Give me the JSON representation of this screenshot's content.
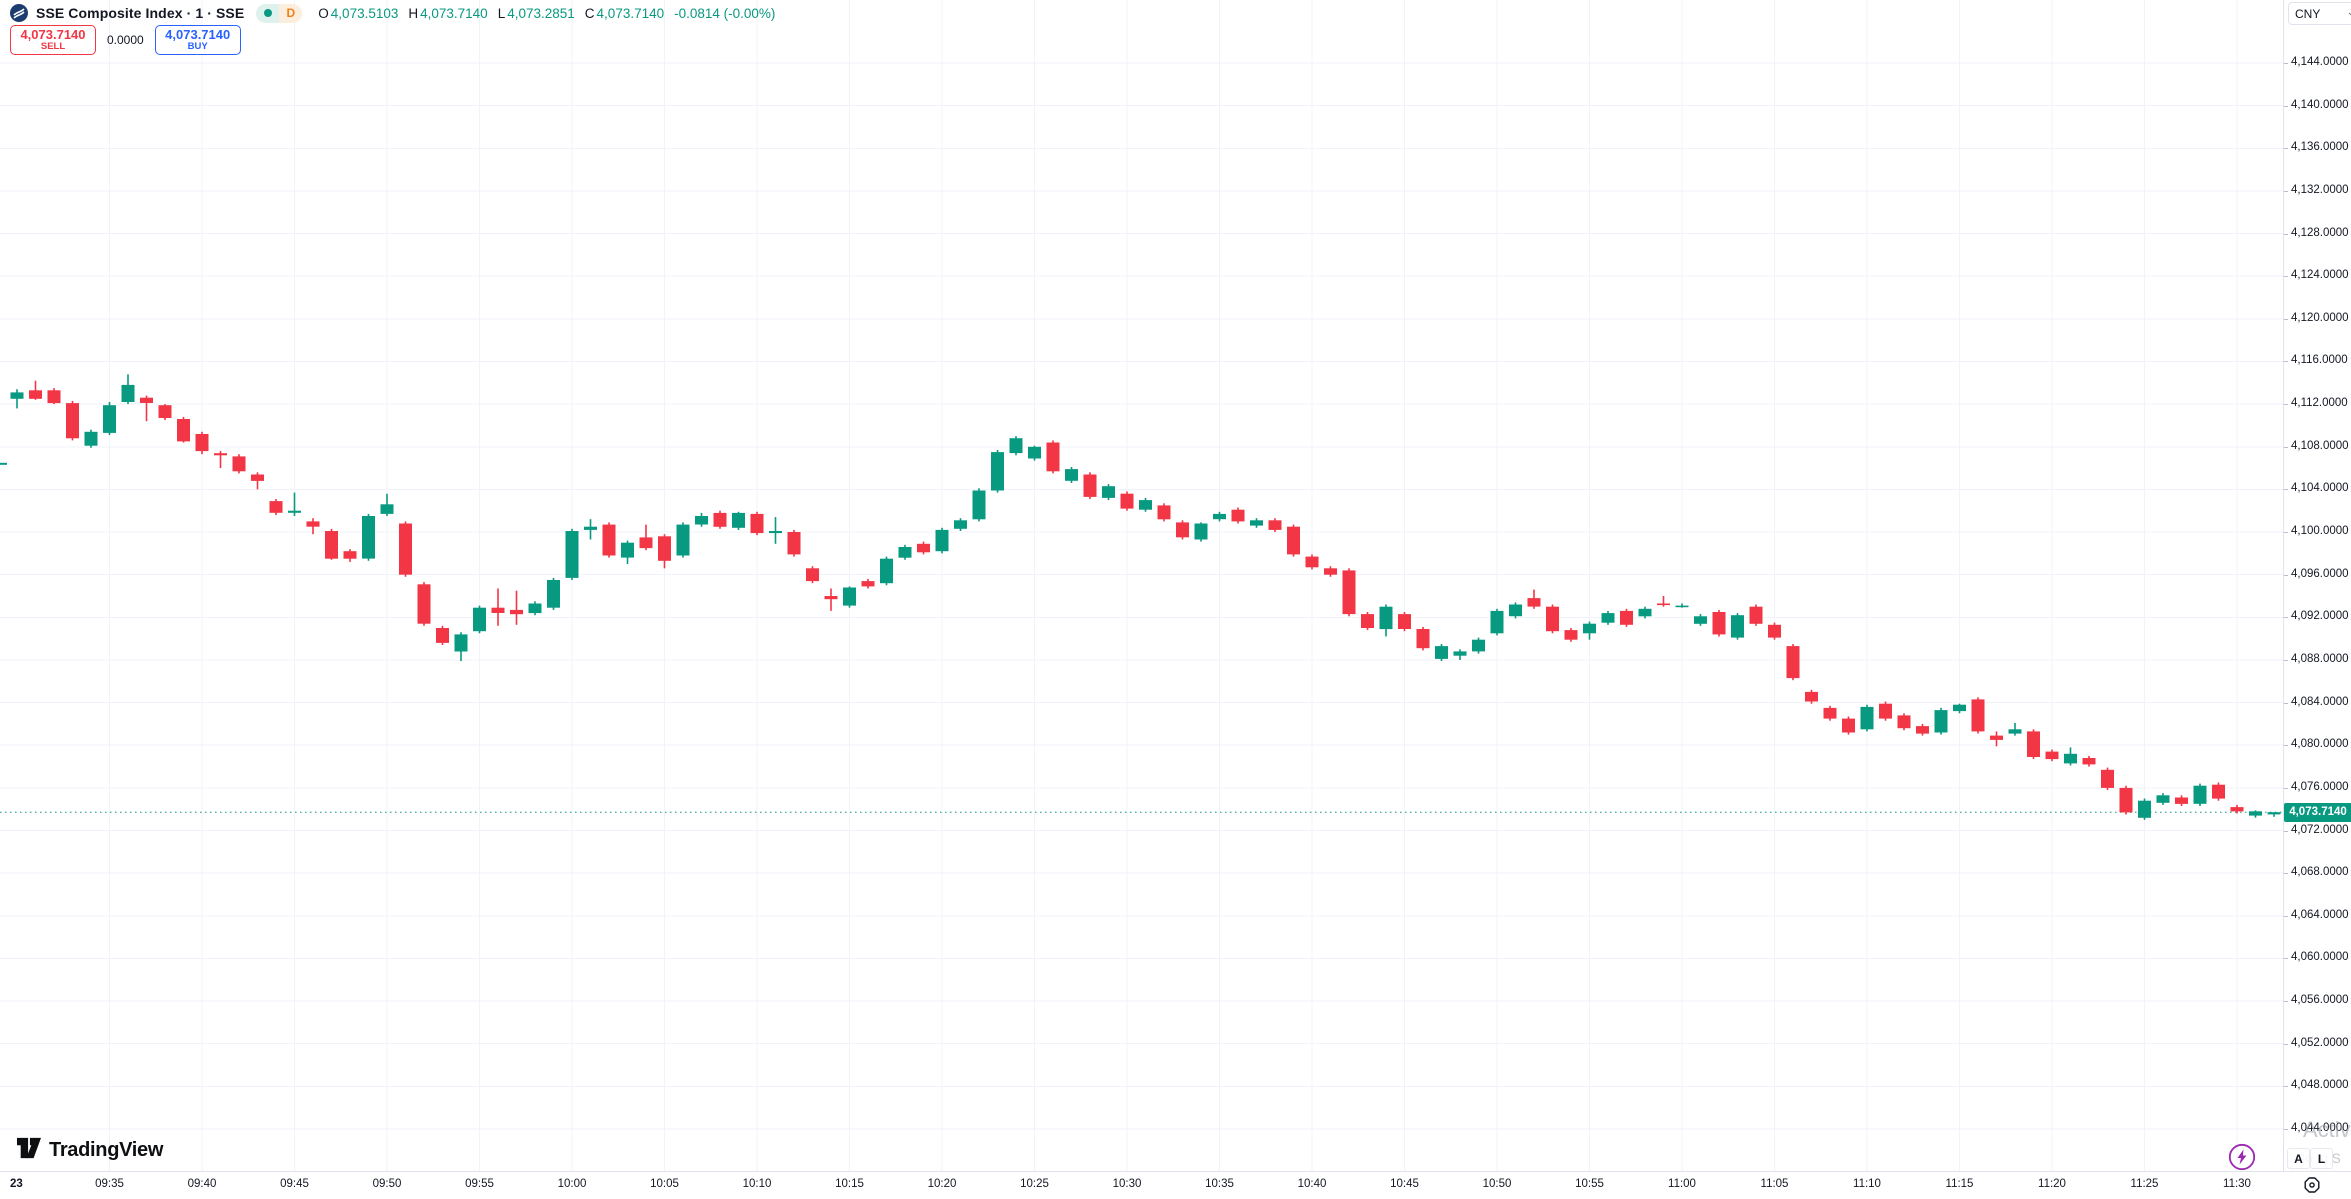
{
  "header": {
    "symbol_title": "SSE Composite Index · 1 · SSE",
    "data_badge": "D",
    "ohlc": {
      "o_label": "O",
      "o": "4,073.5103",
      "h_label": "H",
      "h": "4,073.7140",
      "l_label": "L",
      "l": "4,073.2851",
      "c_label": "C",
      "c": "4,073.7140",
      "change": "-0.0814 (-0.00%)"
    }
  },
  "trade_panel": {
    "sell_price": "4,073.7140",
    "sell_label": "SELL",
    "spread": "0.0000",
    "buy_price": "4,073.7140",
    "buy_label": "BUY"
  },
  "price_axis": {
    "currency": "CNY",
    "labels": [
      "4,144.0000",
      "4,140.0000",
      "4,136.0000",
      "4,132.0000",
      "4,128.0000",
      "4,124.0000",
      "4,120.0000",
      "4,116.0000",
      "4,112.0000",
      "4,108.0000",
      "4,104.0000",
      "4,100.0000",
      "4,096.0000",
      "4,092.0000",
      "4,088.0000",
      "4,084.0000",
      "4,080.0000",
      "4,076.0000",
      "4,072.0000",
      "4,068.0000",
      "4,064.0000",
      "4,060.0000",
      "4,056.0000",
      "4,052.0000",
      "4,048.0000",
      "4,044.0000"
    ],
    "last_price_tag": "4,073.7140",
    "last_price_value": 4073.714
  },
  "time_axis": {
    "labels": [
      "23",
      "09:35",
      "09:40",
      "09:45",
      "09:50",
      "09:55",
      "10:00",
      "10:05",
      "10:10",
      "10:15",
      "10:20",
      "10:25",
      "10:30",
      "10:35",
      "10:40",
      "10:45",
      "10:50",
      "10:55",
      "11:00",
      "11:05",
      "11:10",
      "11:15",
      "11:20",
      "11:25",
      "11:30"
    ]
  },
  "footer": {
    "brand": "TradingView"
  },
  "bottom_right": {
    "auto_label": "A",
    "log_label": "L"
  },
  "watermark": {
    "line1": "Activa",
    "line2": "Go to S"
  },
  "colors": {
    "up": "#089981",
    "down": "#F23645",
    "buy": "#2962FF",
    "grid": "#F0F3FA",
    "axis_border": "#E0E3EB",
    "text": "#131722",
    "badge_d": "#F0801A",
    "logo_navy": "#1B3C6E",
    "bolt_purple": "#9C27B0",
    "watermark_gray": "#9598A1"
  },
  "chart_data": {
    "type": "candlestick",
    "title": "SSE Composite Index, 1 minute",
    "interval": "1m",
    "currency": "CNY",
    "ylim": [
      4042,
      4146
    ],
    "grid": true,
    "price_gridline_step": 4,
    "time_gridline_step_minutes": 5,
    "last_price": 4073.714,
    "columns": [
      "time",
      "open",
      "high",
      "low",
      "close"
    ],
    "candles": [
      [
        "09:30",
        4112.5,
        4113.4,
        4111.6,
        4113.1
      ],
      [
        "09:31",
        4113.3,
        4114.2,
        4112.4,
        4112.5
      ],
      [
        "09:32",
        4113.3,
        4113.5,
        4112.0,
        4112.1
      ],
      [
        "09:33",
        4112.1,
        4112.3,
        4108.6,
        4108.8
      ],
      [
        "09:34",
        4108.1,
        4109.6,
        4107.9,
        4109.4
      ],
      [
        "09:35",
        4109.3,
        4112.2,
        4109.1,
        4111.9
      ],
      [
        "09:36",
        4112.2,
        4114.8,
        4112.0,
        4113.8
      ],
      [
        "09:37",
        4112.6,
        4112.8,
        4110.4,
        4112.1
      ],
      [
        "09:38",
        4111.9,
        4112.0,
        4110.5,
        4110.7
      ],
      [
        "09:39",
        4110.6,
        4110.8,
        4108.4,
        4108.5
      ],
      [
        "09:40",
        4109.2,
        4109.4,
        4107.3,
        4107.6
      ],
      [
        "09:41",
        4107.4,
        4107.6,
        4106.0,
        4107.2
      ],
      [
        "09:42",
        4107.1,
        4107.3,
        4105.5,
        4105.7
      ],
      [
        "09:43",
        4105.4,
        4105.6,
        4104.0,
        4104.8
      ],
      [
        "09:44",
        4102.9,
        4103.1,
        4101.6,
        4101.8
      ],
      [
        "09:45",
        4101.8,
        4103.7,
        4101.5,
        4102.0
      ],
      [
        "09:46",
        4101.0,
        4101.3,
        4099.8,
        4100.5
      ],
      [
        "09:47",
        4100.1,
        4100.3,
        4097.4,
        4097.5
      ],
      [
        "09:48",
        4098.2,
        4098.4,
        4097.2,
        4097.5
      ],
      [
        "09:49",
        4097.5,
        4101.7,
        4097.3,
        4101.5
      ],
      [
        "09:50",
        4101.7,
        4103.6,
        4101.5,
        4102.6
      ],
      [
        "09:51",
        4100.8,
        4101.0,
        4095.8,
        4096.0
      ],
      [
        "09:52",
        4095.1,
        4095.3,
        4091.2,
        4091.4
      ],
      [
        "09:53",
        4091.0,
        4091.2,
        4089.4,
        4089.6
      ],
      [
        "09:54",
        4088.8,
        4090.6,
        4087.9,
        4090.4
      ],
      [
        "09:55",
        4090.7,
        4093.1,
        4090.5,
        4092.9
      ],
      [
        "09:56",
        4092.9,
        4094.7,
        4091.2,
        4092.4
      ],
      [
        "09:57",
        4092.7,
        4094.5,
        4091.3,
        4092.3
      ],
      [
        "09:58",
        4092.4,
        4093.5,
        4092.2,
        4093.3
      ],
      [
        "09:59",
        4092.9,
        4095.7,
        4092.7,
        4095.5
      ],
      [
        "10:00",
        4095.7,
        4100.3,
        4095.5,
        4100.1
      ],
      [
        "10:01",
        4100.2,
        4101.2,
        4099.3,
        4100.5
      ],
      [
        "10:02",
        4100.7,
        4100.9,
        4097.6,
        4097.8
      ],
      [
        "10:03",
        4097.6,
        4099.2,
        4097.0,
        4099.0
      ],
      [
        "10:04",
        4099.5,
        4100.7,
        4098.3,
        4098.5
      ],
      [
        "10:05",
        4099.6,
        4099.8,
        4096.6,
        4097.3
      ],
      [
        "10:06",
        4097.8,
        4100.9,
        4097.6,
        4100.7
      ],
      [
        "10:07",
        4100.7,
        4101.8,
        4100.5,
        4101.5
      ],
      [
        "10:08",
        4101.8,
        4102.0,
        4100.3,
        4100.5
      ],
      [
        "10:09",
        4100.4,
        4101.9,
        4100.2,
        4101.8
      ],
      [
        "10:10",
        4101.7,
        4101.9,
        4099.7,
        4099.9
      ],
      [
        "10:11",
        4099.9,
        4101.4,
        4098.9,
        4100.1
      ],
      [
        "10:12",
        4100.0,
        4100.2,
        4097.7,
        4097.9
      ],
      [
        "10:13",
        4096.6,
        4096.8,
        4095.2,
        4095.4
      ],
      [
        "10:14",
        4094.0,
        4094.7,
        4092.6,
        4093.7
      ],
      [
        "10:15",
        4093.1,
        4094.9,
        4092.9,
        4094.8
      ],
      [
        "10:16",
        4095.4,
        4095.6,
        4094.7,
        4094.9
      ],
      [
        "10:17",
        4095.2,
        4097.7,
        4095.0,
        4097.5
      ],
      [
        "10:18",
        4097.6,
        4098.8,
        4097.4,
        4098.6
      ],
      [
        "10:19",
        4098.9,
        4099.1,
        4097.9,
        4098.1
      ],
      [
        "10:20",
        4098.2,
        4100.4,
        4098.0,
        4100.2
      ],
      [
        "10:21",
        4100.3,
        4101.3,
        4100.1,
        4101.1
      ],
      [
        "10:22",
        4101.2,
        4104.1,
        4101.0,
        4103.9
      ],
      [
        "10:23",
        4103.9,
        4107.7,
        4103.7,
        4107.5
      ],
      [
        "10:24",
        4107.4,
        4109.0,
        4107.2,
        4108.8
      ],
      [
        "10:25",
        4106.9,
        4108.1,
        4106.7,
        4108.0
      ],
      [
        "10:26",
        4108.4,
        4108.6,
        4105.5,
        4105.7
      ],
      [
        "10:27",
        4104.8,
        4106.1,
        4104.6,
        4105.9
      ],
      [
        "10:28",
        4105.4,
        4105.6,
        4103.1,
        4103.3
      ],
      [
        "10:29",
        4103.2,
        4104.5,
        4103.0,
        4104.3
      ],
      [
        "10:30",
        4103.6,
        4103.8,
        4102.0,
        4102.2
      ],
      [
        "10:31",
        4102.1,
        4103.2,
        4101.9,
        4103.0
      ],
      [
        "10:32",
        4102.5,
        4102.7,
        4101.0,
        4101.2
      ],
      [
        "10:33",
        4100.9,
        4101.1,
        4099.3,
        4099.5
      ],
      [
        "10:34",
        4099.3,
        4100.9,
        4099.1,
        4100.8
      ],
      [
        "10:35",
        4101.2,
        4101.9,
        4101.0,
        4101.7
      ],
      [
        "10:36",
        4102.1,
        4102.3,
        4100.8,
        4101.0
      ],
      [
        "10:37",
        4100.6,
        4101.3,
        4100.4,
        4101.1
      ],
      [
        "10:38",
        4101.1,
        4101.3,
        4100.0,
        4100.2
      ],
      [
        "10:39",
        4100.5,
        4100.7,
        4097.7,
        4097.9
      ],
      [
        "10:40",
        4097.7,
        4097.9,
        4096.5,
        4096.7
      ],
      [
        "10:41",
        4096.6,
        4096.8,
        4095.8,
        4096.0
      ],
      [
        "10:42",
        4096.4,
        4096.6,
        4092.1,
        4092.3
      ],
      [
        "10:43",
        4092.3,
        4092.5,
        4090.8,
        4091.0
      ],
      [
        "10:44",
        4090.9,
        4093.2,
        4090.2,
        4093.0
      ],
      [
        "10:45",
        4092.3,
        4092.5,
        4090.7,
        4090.9
      ],
      [
        "10:46",
        4090.9,
        4091.1,
        4088.9,
        4089.1
      ],
      [
        "10:47",
        4088.1,
        4089.5,
        4087.9,
        4089.3
      ],
      [
        "10:48",
        4088.4,
        4089.0,
        4088.0,
        4088.8
      ],
      [
        "10:49",
        4088.8,
        4090.1,
        4088.6,
        4089.9
      ],
      [
        "10:50",
        4090.5,
        4092.8,
        4090.3,
        4092.6
      ],
      [
        "10:51",
        4092.1,
        4093.4,
        4091.9,
        4093.2
      ],
      [
        "10:52",
        4093.8,
        4094.6,
        4092.8,
        4093.0
      ],
      [
        "10:53",
        4093.0,
        4093.2,
        4090.5,
        4090.7
      ],
      [
        "10:54",
        4090.8,
        4091.0,
        4089.7,
        4089.9
      ],
      [
        "10:55",
        4090.5,
        4091.6,
        4089.9,
        4091.4
      ],
      [
        "10:56",
        4091.5,
        4092.6,
        4091.3,
        4092.4
      ],
      [
        "10:57",
        4092.6,
        4092.8,
        4091.1,
        4091.3
      ],
      [
        "10:58",
        4092.1,
        4093.0,
        4091.9,
        4092.8
      ],
      [
        "10:59",
        4093.3,
        4094.0,
        4093.0,
        4093.2
      ],
      [
        "11:00",
        4093.1,
        4093.3,
        4092.9,
        4093.1
      ],
      [
        "11:01",
        4091.4,
        4092.3,
        4091.2,
        4092.1
      ],
      [
        "11:02",
        4092.5,
        4092.7,
        4090.2,
        4090.4
      ],
      [
        "11:03",
        4090.1,
        4092.4,
        4089.9,
        4092.2
      ],
      [
        "11:04",
        4093.0,
        4093.2,
        4091.2,
        4091.4
      ],
      [
        "11:05",
        4091.3,
        4091.5,
        4089.9,
        4090.1
      ],
      [
        "11:06",
        4089.3,
        4089.5,
        4086.1,
        4086.3
      ],
      [
        "11:07",
        4085.0,
        4085.2,
        4083.9,
        4084.1
      ],
      [
        "11:08",
        4083.5,
        4083.7,
        4082.3,
        4082.5
      ],
      [
        "11:09",
        4082.5,
        4082.7,
        4081.0,
        4081.2
      ],
      [
        "11:10",
        4081.5,
        4083.8,
        4081.3,
        4083.6
      ],
      [
        "11:11",
        4083.9,
        4084.1,
        4082.3,
        4082.5
      ],
      [
        "11:12",
        4082.8,
        4083.0,
        4081.4,
        4081.6
      ],
      [
        "11:13",
        4081.8,
        4082.0,
        4080.9,
        4081.1
      ],
      [
        "11:14",
        4081.2,
        4083.5,
        4081.0,
        4083.3
      ],
      [
        "11:15",
        4083.2,
        4083.9,
        4083.0,
        4083.8
      ],
      [
        "11:16",
        4084.3,
        4084.5,
        4081.1,
        4081.3
      ],
      [
        "11:17",
        4080.9,
        4081.3,
        4079.9,
        4080.5
      ],
      [
        "11:18",
        4081.1,
        4082.1,
        4080.9,
        4081.5
      ],
      [
        "11:19",
        4081.3,
        4081.5,
        4078.7,
        4078.9
      ],
      [
        "11:20",
        4079.4,
        4079.6,
        4078.5,
        4078.7
      ],
      [
        "11:21",
        4078.3,
        4079.8,
        4078.1,
        4079.2
      ],
      [
        "11:22",
        4078.8,
        4079.0,
        4078.0,
        4078.2
      ],
      [
        "11:23",
        4077.7,
        4077.9,
        4075.8,
        4076.0
      ],
      [
        "11:24",
        4076.0,
        4076.2,
        4073.5,
        4073.7
      ],
      [
        "11:25",
        4073.2,
        4075.0,
        4073.0,
        4074.8
      ],
      [
        "11:26",
        4074.6,
        4075.5,
        4074.4,
        4075.3
      ],
      [
        "11:27",
        4075.1,
        4075.3,
        4074.3,
        4074.5
      ],
      [
        "11:28",
        4074.5,
        4076.4,
        4074.3,
        4076.2
      ],
      [
        "11:29",
        4076.3,
        4076.5,
        4074.8,
        4075.0
      ],
      [
        "11:30",
        4074.2,
        4074.4,
        4073.6,
        4073.8
      ],
      [
        "11:31",
        4073.4,
        4073.9,
        4073.2,
        4073.8
      ],
      [
        "11:32",
        4073.5103,
        4073.714,
        4073.2851,
        4073.714
      ]
    ]
  }
}
